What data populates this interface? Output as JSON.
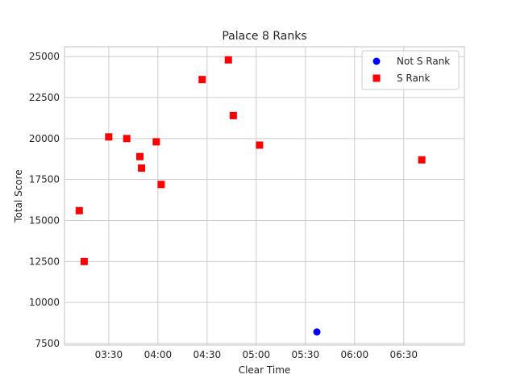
{
  "chart_data": {
    "type": "scatter",
    "title": "Palace 8 Ranks",
    "xlabel": "Clear Time",
    "ylabel": "Total Score",
    "grid": true,
    "legend_position": "top-right",
    "x_unit": "minutes:seconds",
    "xlim": [
      "03:03",
      "07:07"
    ],
    "ylim": [
      7400,
      25600
    ],
    "x_ticks": [
      "03:30",
      "04:00",
      "04:30",
      "05:00",
      "05:30",
      "06:00",
      "06:30"
    ],
    "y_ticks": [
      7500,
      10000,
      12500,
      15000,
      17500,
      20000,
      22500,
      25000
    ],
    "series": [
      {
        "name": "Not S Rank",
        "color": "#0000ff",
        "marker": "circle",
        "points": [
          {
            "x": "05:37",
            "y": 8200
          }
        ]
      },
      {
        "name": "S Rank",
        "color": "#ff0000",
        "marker": "square",
        "points": [
          {
            "x": "03:12",
            "y": 15600
          },
          {
            "x": "03:15",
            "y": 12500
          },
          {
            "x": "03:30",
            "y": 20100
          },
          {
            "x": "03:41",
            "y": 20000
          },
          {
            "x": "03:49",
            "y": 18900
          },
          {
            "x": "03:50",
            "y": 18200
          },
          {
            "x": "03:59",
            "y": 19800
          },
          {
            "x": "04:02",
            "y": 17200
          },
          {
            "x": "04:27",
            "y": 23600
          },
          {
            "x": "04:43",
            "y": 24800
          },
          {
            "x": "04:46",
            "y": 21400
          },
          {
            "x": "05:02",
            "y": 19600
          },
          {
            "x": "06:41",
            "y": 18700
          }
        ]
      }
    ]
  }
}
